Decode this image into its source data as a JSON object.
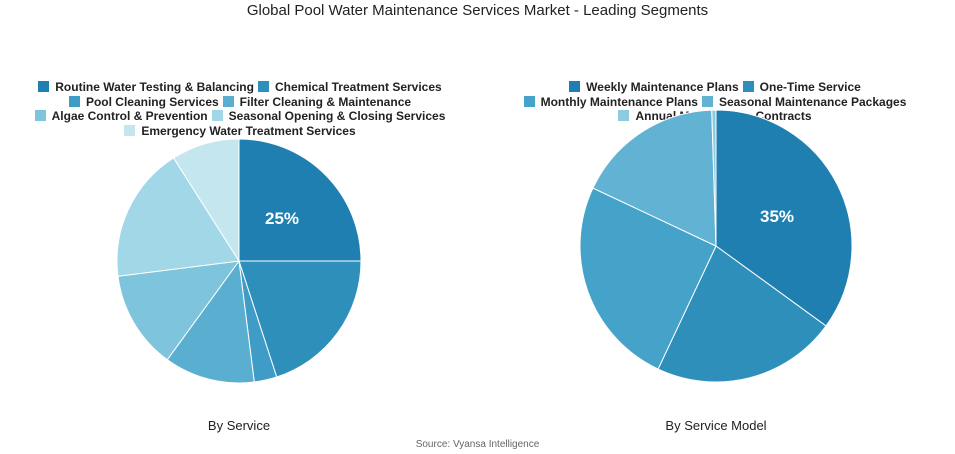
{
  "title": "Global Pool Water Maintenance Services Market - Leading Segments",
  "source": "Source: Vyansa Intelligence",
  "chart_data": [
    {
      "type": "pie",
      "subtitle": "By Service",
      "categories": [
        "Routine Water Testing & Balancing",
        "Chemical Treatment Services",
        "Pool Cleaning Services",
        "Filter Cleaning & Maintenance",
        "Algae Control & Prevention",
        "Seasonal Opening & Closing Services",
        "Emergency Water Treatment Services"
      ],
      "values": [
        25,
        20,
        3,
        12,
        13,
        18,
        9
      ],
      "data_labels": [
        "25%"
      ],
      "colors": [
        "#1f7fb0",
        "#2e8fbb",
        "#3f9cc6",
        "#5aaed0",
        "#7ec4dc",
        "#a1d7e6",
        "#c4e7ef"
      ],
      "legend": "top"
    },
    {
      "type": "pie",
      "subtitle": "By Service Model",
      "categories": [
        "Weekly Maintenance Plans",
        "One-Time Service",
        "Monthly Maintenance Plans",
        "Seasonal Maintenance Packages",
        "Annual Maintenance Contracts"
      ],
      "values": [
        35,
        22,
        25,
        17.5,
        0.5
      ],
      "data_labels": [
        "35%"
      ],
      "colors": [
        "#1f7fb0",
        "#2e8fbb",
        "#45a2c9",
        "#62b3d3",
        "#8fcbe0"
      ],
      "legend": "top"
    }
  ]
}
